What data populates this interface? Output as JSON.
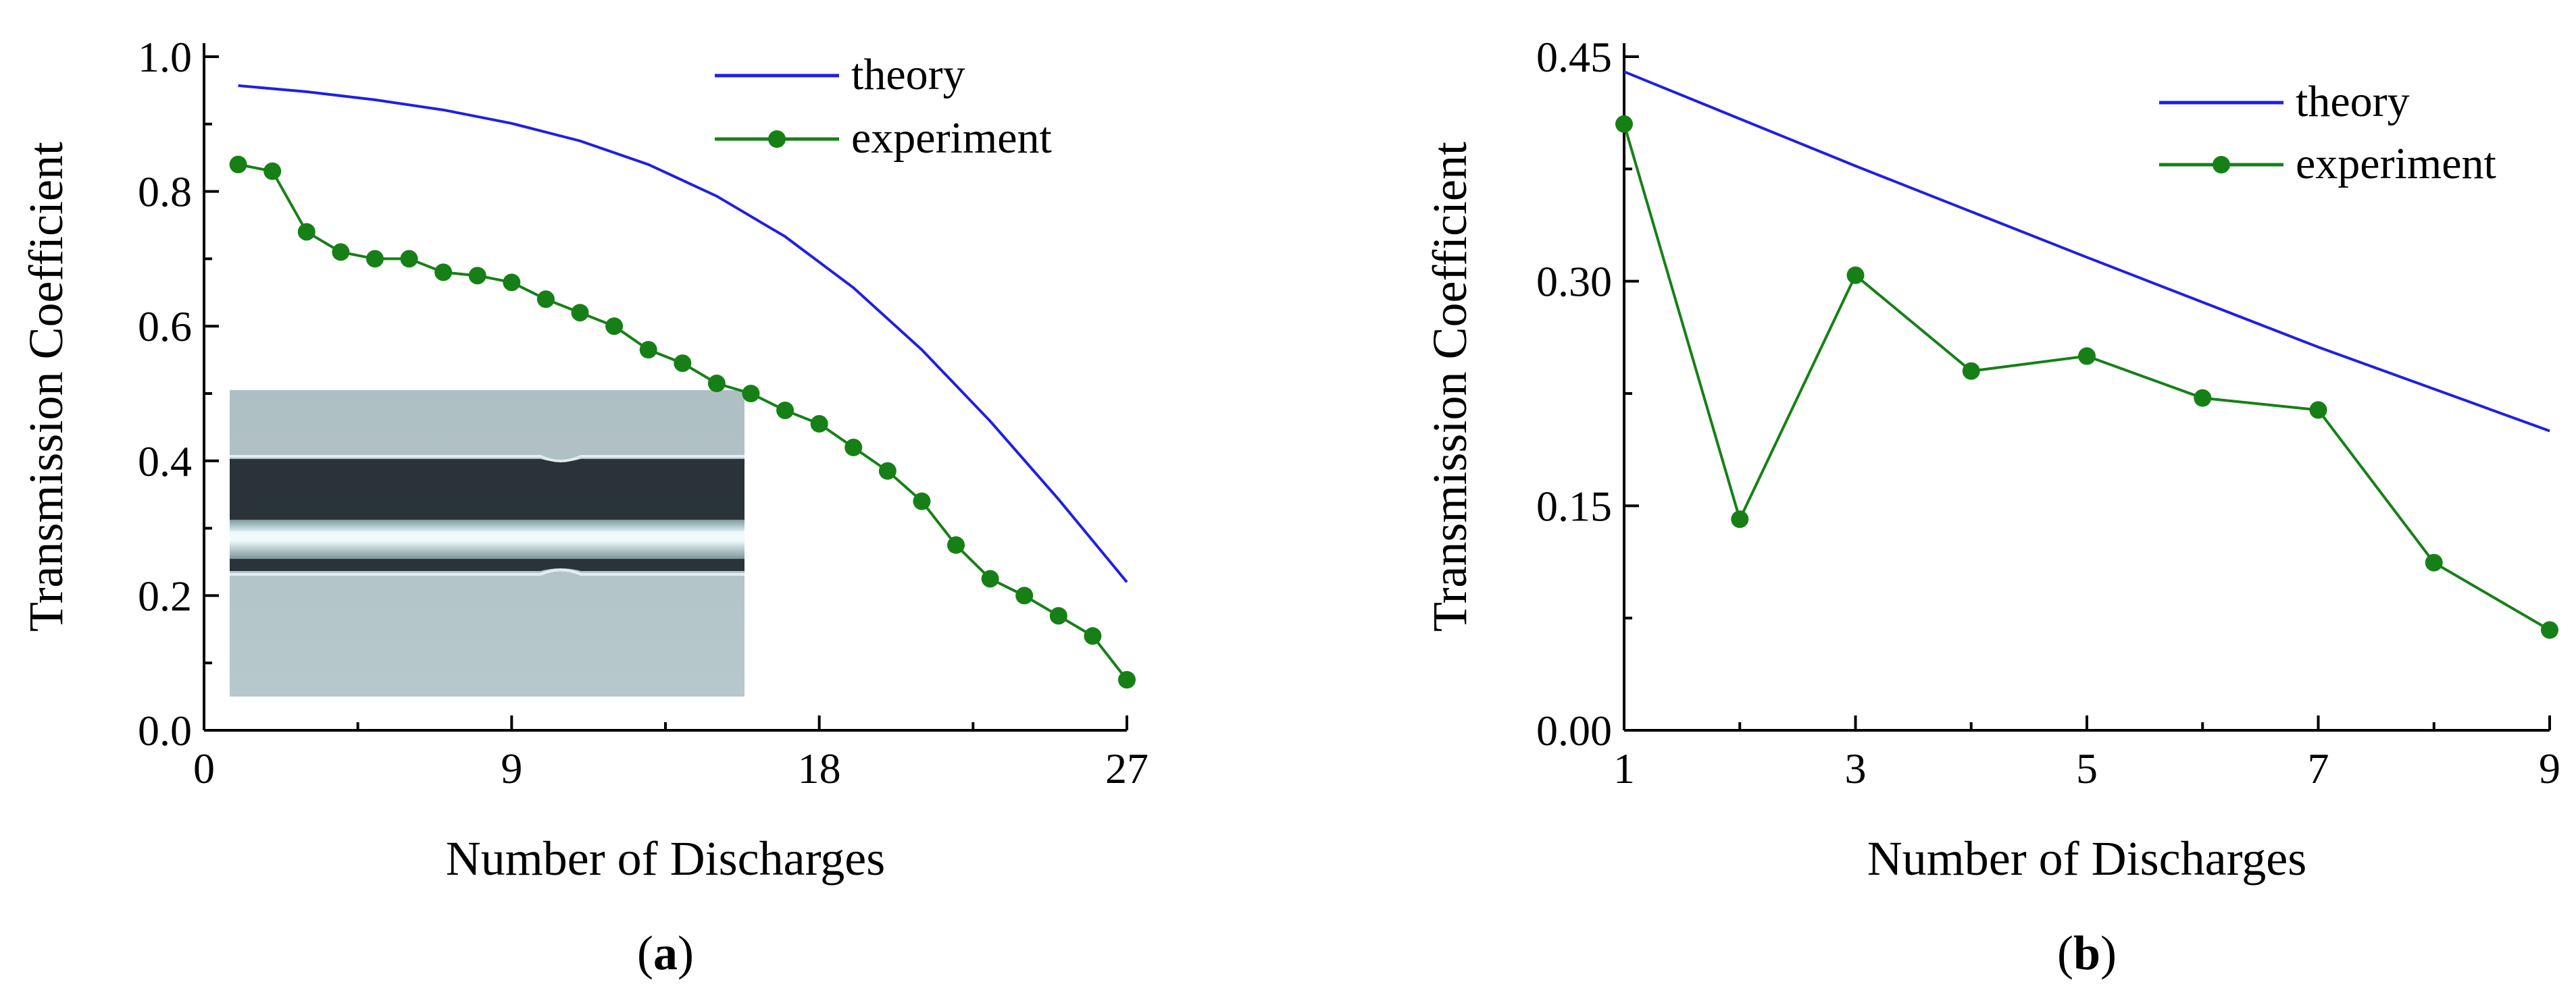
{
  "colors": {
    "theory": "#1f1fe6",
    "experiment": "#168016"
  },
  "chart_data": [
    {
      "type": "line",
      "panel_label": "a",
      "xlabel": "Number of Discharges",
      "ylabel": "Transmission Coefficient",
      "xlim": [
        0,
        27
      ],
      "ylim": [
        0,
        1.0
      ],
      "xticks": [
        0,
        9,
        18,
        27
      ],
      "xtick_labels": [
        "0",
        "9",
        "18",
        "27"
      ],
      "yticks": [
        0,
        0.2,
        0.4,
        0.6,
        0.8,
        1.0
      ],
      "ytick_labels": [
        "0.0",
        "0.2",
        "0.4",
        "0.6",
        "0.8",
        "1.0"
      ],
      "legend_position": "top-right",
      "inset": "photograph of tapered fiber (inset, lower-left)",
      "series": [
        {
          "name": "theory",
          "marker": "none",
          "x": [
            1,
            3,
            5,
            7,
            9,
            11,
            13,
            15,
            17,
            19,
            21,
            23,
            25,
            27
          ],
          "values": [
            0.957,
            0.948,
            0.936,
            0.921,
            0.901,
            0.875,
            0.84,
            0.793,
            0.733,
            0.657,
            0.565,
            0.459,
            0.343,
            0.22
          ]
        },
        {
          "name": "experiment",
          "marker": "circle",
          "x": [
            1,
            2,
            3,
            4,
            5,
            6,
            7,
            8,
            9,
            10,
            11,
            12,
            13,
            14,
            15,
            16,
            17,
            18,
            19,
            20,
            21,
            22,
            23,
            24,
            25,
            26,
            27
          ],
          "values": [
            0.84,
            0.83,
            0.74,
            0.71,
            0.7,
            0.7,
            0.68,
            0.675,
            0.665,
            0.64,
            0.62,
            0.6,
            0.565,
            0.545,
            0.515,
            0.5,
            0.475,
            0.455,
            0.42,
            0.385,
            0.34,
            0.275,
            0.225,
            0.2,
            0.17,
            0.14,
            0.075
          ]
        }
      ]
    },
    {
      "type": "line",
      "panel_label": "b",
      "xlabel": "Number of Discharges",
      "ylabel": "Transmission Coefficient",
      "xlim": [
        1,
        9
      ],
      "ylim": [
        0,
        0.45
      ],
      "xticks": [
        1,
        3,
        5,
        7,
        9
      ],
      "xtick_labels": [
        "1",
        "3",
        "5",
        "7",
        "9"
      ],
      "yticks": [
        0,
        0.15,
        0.3,
        0.45
      ],
      "ytick_labels": [
        "0.00",
        "0.15",
        "0.30",
        "0.45"
      ],
      "legend_position": "top-right",
      "series": [
        {
          "name": "theory",
          "marker": "none",
          "x": [
            1,
            3,
            5,
            7,
            9
          ],
          "values": [
            0.44,
            0.377,
            0.316,
            0.256,
            0.2
          ]
        },
        {
          "name": "experiment",
          "marker": "circle",
          "x": [
            1,
            2,
            3,
            4,
            5,
            6,
            7,
            8,
            9
          ],
          "values": [
            0.405,
            0.141,
            0.304,
            0.24,
            0.25,
            0.222,
            0.214,
            0.112,
            0.067
          ]
        }
      ]
    }
  ]
}
